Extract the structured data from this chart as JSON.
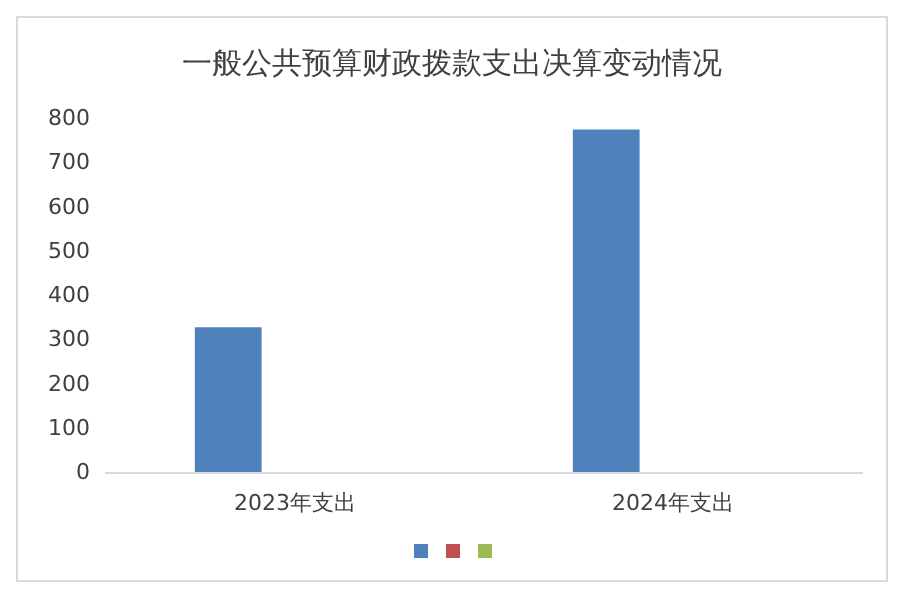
{
  "chart_data": {
    "type": "bar",
    "title": "一般公共预算财政拨款支出决算变动情况",
    "categories": [
      "2023年支出",
      "2024年支出"
    ],
    "series": [
      {
        "color": "#4f81bd",
        "values": [
          327,
          774
        ]
      },
      {
        "color": "#c0504d",
        "values": [
          0,
          0
        ]
      },
      {
        "color": "#9bbb59",
        "values": [
          0,
          0
        ]
      }
    ],
    "ylim": [
      0,
      800
    ],
    "yticks": [
      0,
      100,
      200,
      300,
      400,
      500,
      600,
      700,
      800
    ],
    "grid": false
  }
}
